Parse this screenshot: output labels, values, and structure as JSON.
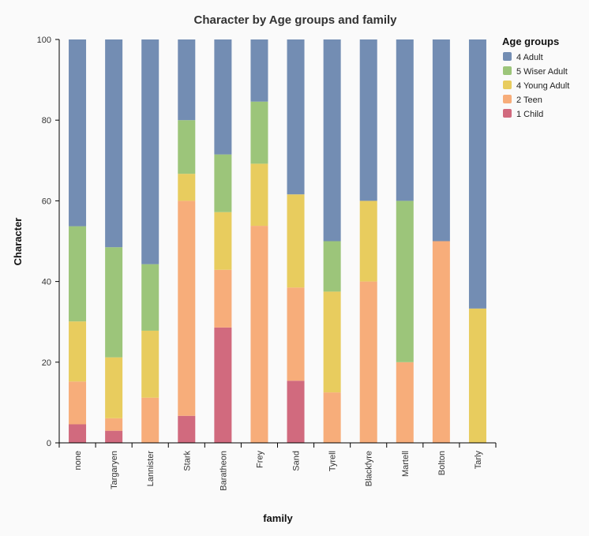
{
  "chart_data": {
    "type": "bar",
    "stacked": true,
    "title": "Character by Age groups and family",
    "xlabel": "family",
    "ylabel": "Character",
    "ylim": [
      0,
      100
    ],
    "yticks": [
      0,
      20,
      40,
      60,
      80,
      100
    ],
    "grid": false,
    "legend": {
      "title": "Age groups",
      "position": "top-right"
    },
    "categories": [
      "none",
      "Targaryen",
      "Lannister",
      "Stark",
      "Baratheon",
      "Frey",
      "Sand",
      "Tyrell",
      "Blackfyre",
      "Martell",
      "Bolton",
      "Tarly"
    ],
    "series": [
      {
        "name": "1 Child",
        "color": "#d16a7e",
        "values": [
          4.6,
          3.0,
          0,
          6.7,
          28.6,
          0,
          15.4,
          0,
          0,
          0,
          0,
          0
        ]
      },
      {
        "name": "2 Teen",
        "color": "#f7ad7a",
        "values": [
          10.6,
          3.1,
          11.2,
          53.3,
          14.3,
          53.8,
          23.1,
          12.5,
          40.0,
          20.0,
          50.0,
          0
        ]
      },
      {
        "name": "4 Young Adult",
        "color": "#e8cc5e",
        "values": [
          14.9,
          15.1,
          16.6,
          6.7,
          14.3,
          15.4,
          23.1,
          25.0,
          20.0,
          0,
          0,
          33.3
        ]
      },
      {
        "name": "5 Wiser Adult",
        "color": "#9cc57a",
        "values": [
          23.6,
          27.3,
          16.5,
          13.3,
          14.3,
          15.4,
          0,
          12.5,
          0,
          40.0,
          0,
          0
        ]
      },
      {
        "name": "4 Adult",
        "color": "#738db3",
        "values": [
          46.3,
          51.5,
          55.7,
          20.0,
          28.5,
          15.4,
          38.4,
          50.0,
          40.0,
          40.0,
          50.0,
          66.7
        ]
      }
    ],
    "legend_order": [
      "4 Adult",
      "5 Wiser Adult",
      "4 Young Adult",
      "2 Teen",
      "1 Child"
    ]
  }
}
